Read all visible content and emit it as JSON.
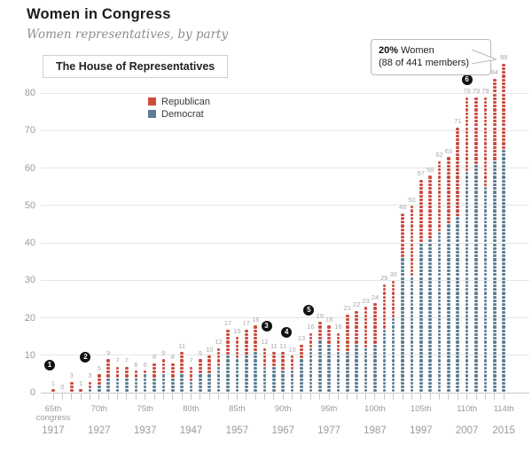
{
  "header": {
    "title": "Women in Congress",
    "subtitle": "Women representatives, by party",
    "section_label": "The House of Representatives"
  },
  "legend": {
    "items": [
      {
        "label": "Republican",
        "color": "#cb4b3c"
      },
      {
        "label": "Democrat",
        "color": "#5d7e94"
      }
    ]
  },
  "callout": {
    "highlight": "20%",
    "rest": " Women",
    "line2": "(88 of 441 members)"
  },
  "colors": {
    "republican": "#cb4b3c",
    "democrat": "#5d7e94",
    "value_label": "#a9a9a9",
    "axis_label": "#9b9b9b",
    "gridline": "#e6e6e6",
    "baseline": "#c9c9c9",
    "marker_bg": "#111111"
  },
  "chart_data": {
    "type": "stacked-dot-column",
    "title": "Women in Congress",
    "subtitle": "Women representatives, by party",
    "section": "The House of Representatives",
    "unit": "1 dot = 1 woman representative",
    "categories": [
      65,
      66,
      67,
      68,
      69,
      70,
      71,
      72,
      73,
      74,
      75,
      76,
      77,
      78,
      79,
      80,
      81,
      82,
      83,
      84,
      85,
      86,
      87,
      88,
      89,
      90,
      91,
      92,
      93,
      94,
      95,
      96,
      97,
      98,
      99,
      100,
      101,
      102,
      103,
      104,
      105,
      106,
      107,
      108,
      109,
      110,
      111,
      112,
      113,
      114
    ],
    "totals": [
      1,
      0,
      3,
      1,
      3,
      5,
      9,
      7,
      7,
      6,
      6,
      8,
      9,
      8,
      11,
      7,
      9,
      10,
      12,
      17,
      15,
      17,
      18,
      12,
      11,
      11,
      10,
      13,
      16,
      19,
      18,
      16,
      21,
      22,
      23,
      24,
      29,
      30,
      48,
      50,
      57,
      58,
      62,
      63,
      71,
      79,
      79,
      79,
      84,
      88
    ],
    "series": [
      {
        "name": "Republican",
        "values": [
          1,
          0,
          3,
          1,
          2,
          3,
          5,
          3,
          3,
          2,
          1,
          4,
          4,
          4,
          6,
          4,
          4,
          5,
          5,
          7,
          6,
          7,
          7,
          5,
          4,
          5,
          4,
          4,
          4,
          5,
          5,
          5,
          10,
          9,
          11,
          11,
          12,
          10,
          12,
          19,
          17,
          17,
          19,
          18,
          24,
          20,
          18,
          24,
          22,
          23
        ]
      },
      {
        "name": "Democrat",
        "values": [
          0,
          0,
          0,
          0,
          1,
          2,
          4,
          4,
          4,
          4,
          5,
          4,
          5,
          4,
          5,
          3,
          5,
          5,
          7,
          10,
          9,
          10,
          11,
          7,
          7,
          6,
          6,
          9,
          12,
          14,
          13,
          11,
          11,
          13,
          12,
          13,
          17,
          20,
          36,
          31,
          40,
          41,
          43,
          45,
          47,
          59,
          61,
          55,
          62,
          65
        ]
      }
    ],
    "y_axis": {
      "min": 0,
      "max": 80,
      "step": 10,
      "gridlines": true
    },
    "x_ticks": [
      {
        "congress": 65,
        "label": "65th",
        "sublabel": "congress",
        "year": "1917"
      },
      {
        "congress": 70,
        "label": "70th",
        "year": "1927"
      },
      {
        "congress": 75,
        "label": "75th",
        "year": "1937"
      },
      {
        "congress": 80,
        "label": "80th",
        "year": "1947"
      },
      {
        "congress": 85,
        "label": "85th",
        "year": "1957"
      },
      {
        "congress": 90,
        "label": "90th",
        "year": "1967"
      },
      {
        "congress": 95,
        "label": "95th",
        "year": "1977"
      },
      {
        "congress": 100,
        "label": "100th",
        "year": "1987"
      },
      {
        "congress": 105,
        "label": "105th",
        "year": "1997"
      },
      {
        "congress": 110,
        "label": "110th",
        "year": "2007"
      },
      {
        "congress": 114,
        "label": "114th",
        "year": "2015"
      }
    ],
    "annotations": {
      "callout": {
        "text_bold": "20%",
        "text_rest": " Women",
        "text_line2": "(88 of 441 members)",
        "points_to_value": 88
      },
      "markers": [
        {
          "label": "1",
          "congress": 65,
          "value": 7.4,
          "dx": -4
        },
        {
          "label": "2",
          "congress": 69,
          "value": 9.4,
          "dx": -5
        },
        {
          "label": "3",
          "congress": 88,
          "value": 17.8,
          "dx": 2
        },
        {
          "label": "4",
          "congress": 90,
          "value": 16.0,
          "dx": 4
        },
        {
          "label": "5",
          "congress": 93,
          "value": 22.0,
          "dx": -2
        },
        {
          "label": "6",
          "congress": 110,
          "value": 83.6,
          "dx": 0
        }
      ]
    },
    "legend": [
      "Republican",
      "Democrat"
    ],
    "legend_position": "upper-left-inside"
  }
}
